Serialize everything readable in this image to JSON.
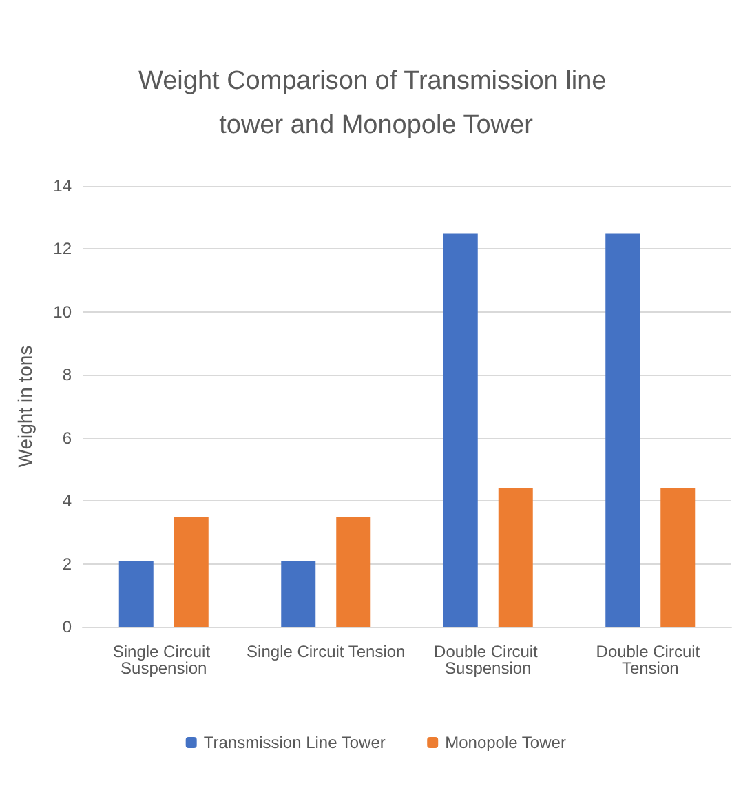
{
  "chart_data": {
    "type": "bar",
    "title": "Weight Comparison of Transmission line tower and Monopole Tower",
    "ylabel": "Weight in tons",
    "categories": [
      "Single Circuit Suspension",
      "Single Circuit Tension",
      "Double Circuit Suspension",
      "Double Circuit Tension"
    ],
    "series": [
      {
        "name": "Transmission Line Tower",
        "color": "#4472c4",
        "values": [
          2.1,
          2.1,
          12.5,
          12.5
        ]
      },
      {
        "name": "Monopole Tower",
        "color": "#ed7d31",
        "values": [
          3.5,
          3.5,
          4.4,
          4.4
        ]
      }
    ],
    "ylim": [
      0,
      14
    ],
    "yticks": [
      0,
      2,
      4,
      6,
      8,
      10,
      12,
      14
    ],
    "grid": "y",
    "legend": "bottom"
  }
}
